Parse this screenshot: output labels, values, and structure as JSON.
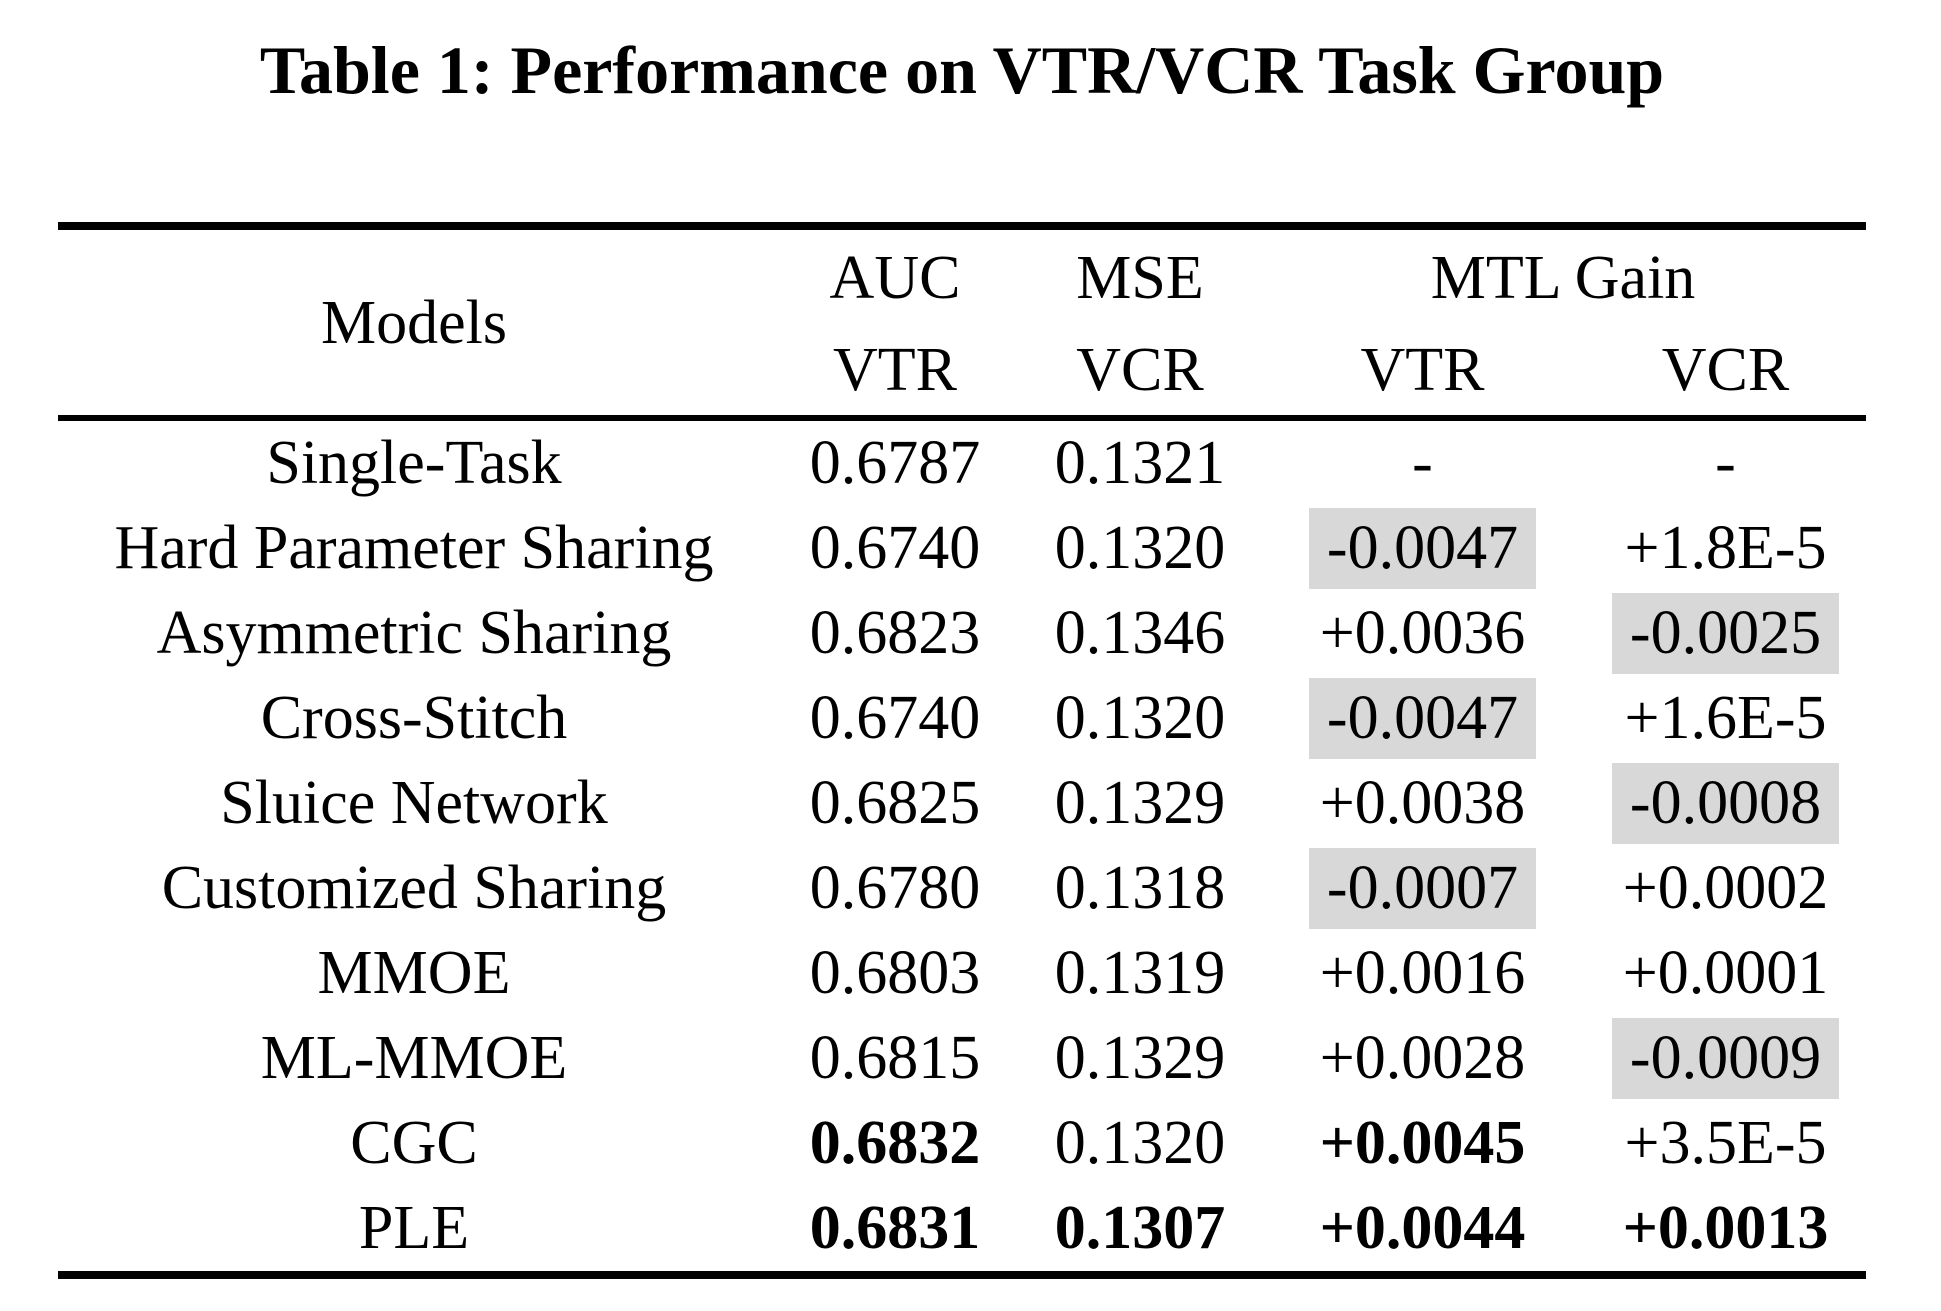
{
  "title": "Table 1: Performance on VTR/VCR Task Group",
  "table": {
    "highlight_color": "#d8d8d8",
    "header": {
      "models": "Models",
      "auc_label": "AUC",
      "auc_task": "VTR",
      "mse_label": "MSE",
      "mse_task": "VCR",
      "mtl_gain_label": "MTL Gain",
      "mtl_gain_vtr": "VTR",
      "mtl_gain_vcr": "VCR"
    },
    "rows": [
      {
        "model": "Single-Task",
        "auc": {
          "text": "0.6787"
        },
        "mse": {
          "text": "0.1321"
        },
        "gain_vtr": {
          "text": "-"
        },
        "gain_vcr": {
          "text": "-"
        }
      },
      {
        "model": "Hard Parameter Sharing",
        "auc": {
          "text": "0.6740"
        },
        "mse": {
          "text": "0.1320"
        },
        "gain_vtr": {
          "text": "-0.0047",
          "highlight": true
        },
        "gain_vcr": {
          "text": "+1.8E-5"
        }
      },
      {
        "model": "Asymmetric Sharing",
        "auc": {
          "text": "0.6823"
        },
        "mse": {
          "text": "0.1346"
        },
        "gain_vtr": {
          "text": "+0.0036"
        },
        "gain_vcr": {
          "text": "-0.0025",
          "highlight": true
        }
      },
      {
        "model": "Cross-Stitch",
        "auc": {
          "text": "0.6740"
        },
        "mse": {
          "text": "0.1320"
        },
        "gain_vtr": {
          "text": "-0.0047",
          "highlight": true
        },
        "gain_vcr": {
          "text": "+1.6E-5"
        }
      },
      {
        "model": "Sluice Network",
        "auc": {
          "text": "0.6825"
        },
        "mse": {
          "text": "0.1329"
        },
        "gain_vtr": {
          "text": "+0.0038"
        },
        "gain_vcr": {
          "text": "-0.0008",
          "highlight": true
        }
      },
      {
        "model": "Customized Sharing",
        "auc": {
          "text": "0.6780"
        },
        "mse": {
          "text": "0.1318"
        },
        "gain_vtr": {
          "text": "-0.0007",
          "highlight": true
        },
        "gain_vcr": {
          "text": "+0.0002"
        }
      },
      {
        "model": "MMOE",
        "auc": {
          "text": "0.6803"
        },
        "mse": {
          "text": "0.1319"
        },
        "gain_vtr": {
          "text": "+0.0016"
        },
        "gain_vcr": {
          "text": "+0.0001"
        }
      },
      {
        "model": "ML-MMOE",
        "auc": {
          "text": "0.6815"
        },
        "mse": {
          "text": "0.1329"
        },
        "gain_vtr": {
          "text": "+0.0028"
        },
        "gain_vcr": {
          "text": "-0.0009",
          "highlight": true
        }
      },
      {
        "model": "CGC",
        "auc": {
          "text": "0.6832",
          "bold": true
        },
        "mse": {
          "text": "0.1320"
        },
        "gain_vtr": {
          "text": "+0.0045",
          "bold": true
        },
        "gain_vcr": {
          "text": "+3.5E-5"
        }
      },
      {
        "model": "PLE",
        "auc": {
          "text": "0.6831",
          "bold": true
        },
        "mse": {
          "text": "0.1307",
          "bold": true
        },
        "gain_vtr": {
          "text": "+0.0044",
          "bold": true
        },
        "gain_vcr": {
          "text": "+0.0013",
          "bold": true
        }
      }
    ]
  }
}
